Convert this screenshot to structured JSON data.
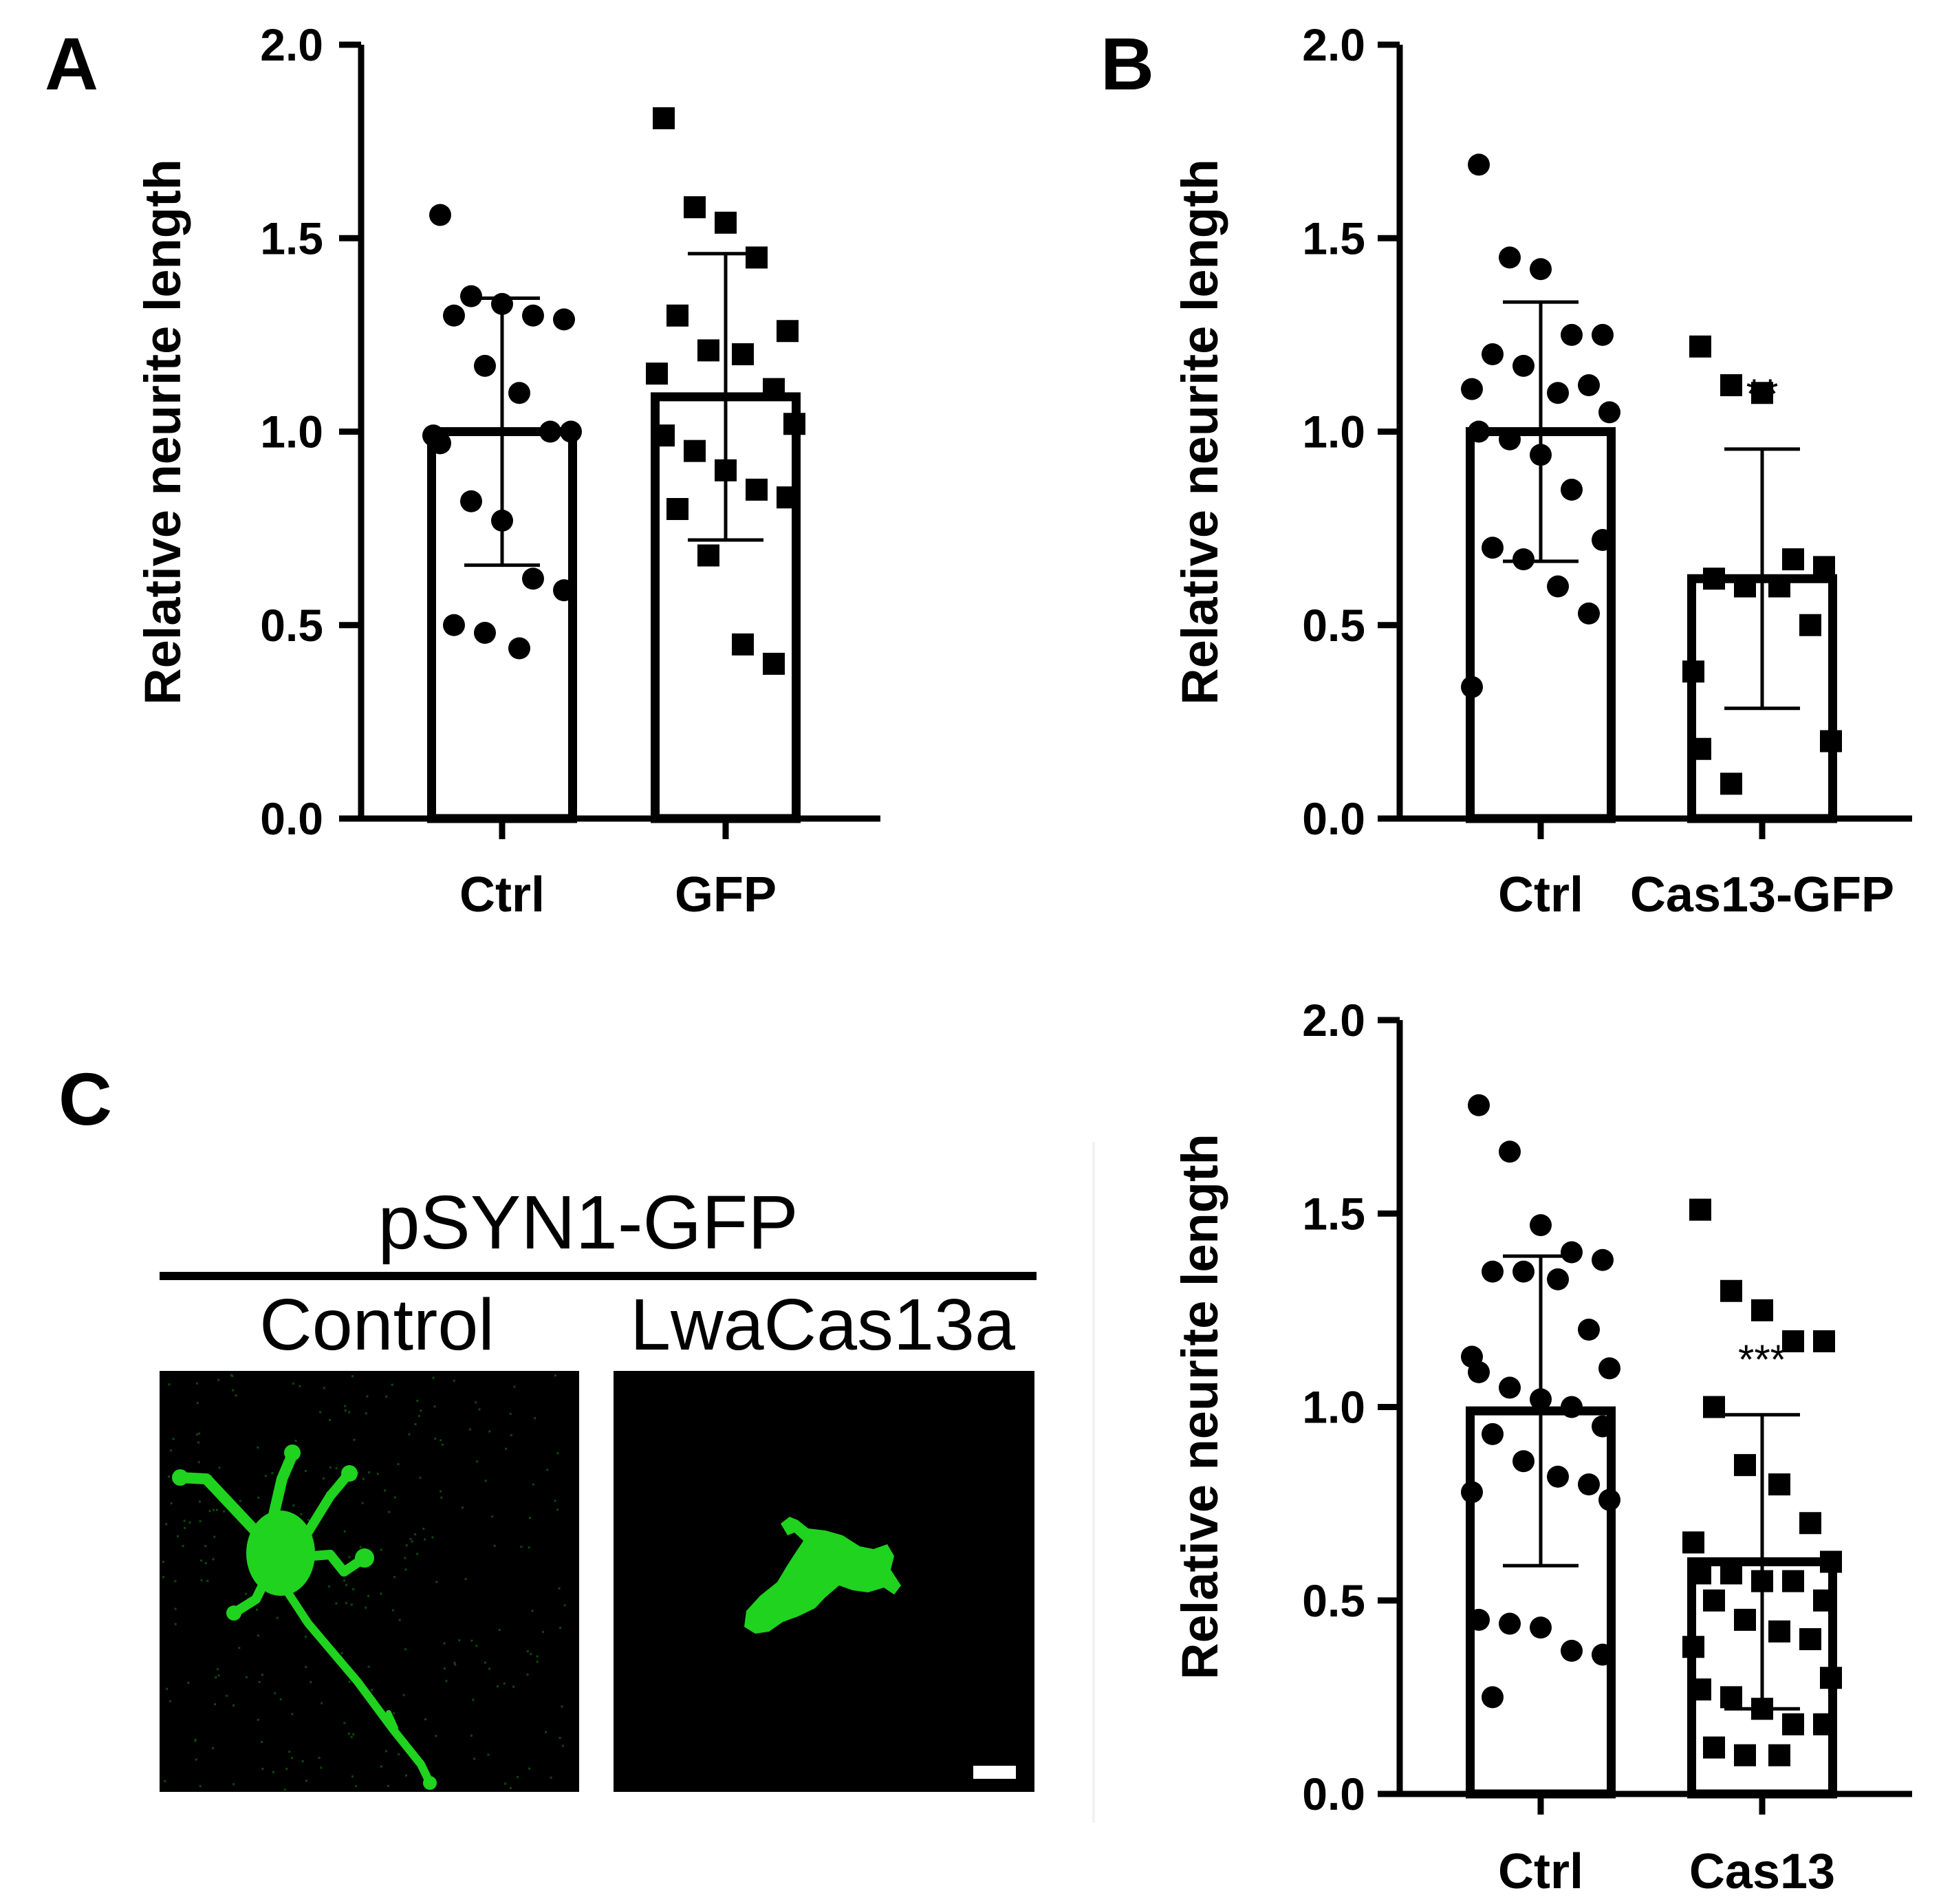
{
  "panels": {
    "a": {
      "letter": "A"
    },
    "b": {
      "letter": "B"
    },
    "c": {
      "letter": "C"
    }
  },
  "micrographs": {
    "header": "pSYN1-GFP",
    "left_label": "Control",
    "right_label": "LwaCas13a",
    "background_color": "#000000",
    "cell_color": "#1fd31f",
    "scale_bar_color": "#ffffff"
  },
  "chart_data": [
    {
      "id": "A",
      "type": "bar",
      "title": "",
      "xlabel": "",
      "ylabel": "Relative neurite length",
      "ylim": [
        0,
        2.0
      ],
      "yticks": [
        0.0,
        0.5,
        1.0,
        1.5,
        2.0
      ],
      "ytick_labels": [
        "0.0",
        "0.5",
        "1.0",
        "1.5",
        "2.0"
      ],
      "categories": [
        "Ctrl",
        "GFP"
      ],
      "values": [
        1.0,
        1.09
      ],
      "error_sd": [
        0.345,
        0.37
      ],
      "significance": [
        "",
        ""
      ],
      "points": [
        {
          "marker": "circle",
          "values": [
            1.56,
            1.35,
            1.33,
            1.3,
            1.29,
            1.3,
            1.17,
            1.1,
            1.0,
            0.99,
            1.0,
            0.97,
            0.82,
            0.77,
            0.62,
            0.59,
            0.5,
            0.48,
            0.44
          ]
        },
        {
          "marker": "square",
          "values": [
            1.81,
            1.58,
            1.54,
            1.45,
            1.26,
            1.3,
            1.21,
            1.2,
            1.11,
            1.15,
            1.02,
            0.99,
            0.95,
            0.9,
            0.85,
            0.83,
            0.8,
            0.68,
            0.45,
            0.4
          ]
        }
      ]
    },
    {
      "id": "B-top",
      "type": "bar",
      "title": "",
      "xlabel": "",
      "ylabel": "Relative neurite length",
      "ylim": [
        0,
        2.0
      ],
      "yticks": [
        0.0,
        0.5,
        1.0,
        1.5,
        2.0
      ],
      "ytick_labels": [
        "0.0",
        "0.5",
        "1.0",
        "1.5",
        "2.0"
      ],
      "categories": [
        "Ctrl",
        "Cas13-GFP"
      ],
      "values": [
        1.0,
        0.62
      ],
      "error_sd": [
        0.335,
        0.335
      ],
      "significance": [
        "",
        "**"
      ],
      "points": [
        {
          "marker": "circle",
          "values": [
            1.69,
            1.45,
            1.42,
            1.25,
            1.25,
            1.2,
            1.17,
            1.1,
            1.12,
            1.11,
            1.05,
            1.0,
            0.98,
            0.94,
            0.85,
            0.72,
            0.7,
            0.67,
            0.6,
            0.53,
            0.34
          ]
        },
        {
          "marker": "square",
          "values": [
            1.22,
            1.12,
            1.1,
            0.67,
            0.65,
            0.62,
            0.6,
            0.6,
            0.5,
            0.38,
            0.2,
            0.18,
            0.09
          ]
        }
      ]
    },
    {
      "id": "B-bottom",
      "type": "bar",
      "title": "",
      "xlabel": "",
      "ylabel": "Relative neurite length",
      "ylim": [
        0,
        2.0
      ],
      "yticks": [
        0.0,
        0.5,
        1.0,
        1.5,
        2.0
      ],
      "ytick_labels": [
        "0.0",
        "0.5",
        "1.0",
        "1.5",
        "2.0"
      ],
      "categories": [
        "Ctrl",
        "Cas13"
      ],
      "values": [
        0.99,
        0.6
      ],
      "error_sd": [
        0.4,
        0.38
      ],
      "significance": [
        "",
        "***"
      ],
      "points": [
        {
          "marker": "circle",
          "values": [
            1.78,
            1.66,
            1.47,
            1.4,
            1.38,
            1.35,
            1.35,
            1.33,
            1.2,
            1.13,
            1.1,
            1.09,
            1.05,
            1.02,
            1.0,
            0.95,
            0.93,
            0.86,
            0.82,
            0.8,
            0.78,
            0.76,
            0.45,
            0.44,
            0.43,
            0.37,
            0.36,
            0.25
          ]
        },
        {
          "marker": "square",
          "values": [
            1.51,
            1.3,
            1.25,
            1.17,
            1.17,
            1.0,
            0.85,
            0.8,
            0.7,
            0.65,
            0.6,
            0.57,
            0.57,
            0.55,
            0.55,
            0.5,
            0.5,
            0.45,
            0.42,
            0.4,
            0.38,
            0.3,
            0.27,
            0.25,
            0.22,
            0.18,
            0.18,
            0.12,
            0.1,
            0.1
          ]
        }
      ]
    }
  ]
}
